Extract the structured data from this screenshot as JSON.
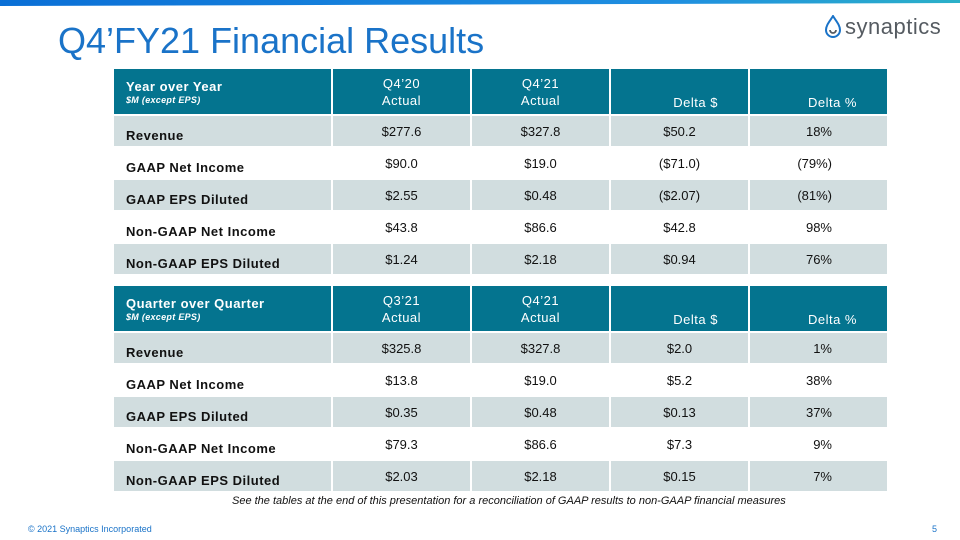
{
  "slide": {
    "title": "Q4’FY21 Financial Results",
    "logo_text": "synaptics",
    "footnote": "See the tables at the end of this presentation for a reconciliation of GAAP results to non-GAAP financial measures",
    "copyright": "© 2021 Synaptics Incorporated",
    "page_number": "5"
  },
  "colors": {
    "title_blue": "#1a73c8",
    "header_teal": "#04748f",
    "row_shade": "#d1dddf",
    "top_bar": "#0a6fd6"
  },
  "yoy": {
    "label": "Year over Year",
    "sublabel": "$M (except EPS)",
    "columns": [
      {
        "line1": "Q4’20",
        "line2": "Actual"
      },
      {
        "line1": "Q4’21",
        "line2": "Actual"
      },
      {
        "label": "Delta $"
      },
      {
        "label": "Delta %"
      }
    ],
    "rows": [
      {
        "label": "Revenue",
        "v1": "$277.6",
        "v2": "$327.8",
        "d": "$50.2",
        "p": "18%"
      },
      {
        "label": "GAAP Net Income",
        "v1": "$90.0",
        "v2": "$19.0",
        "d": "($71.0)",
        "p": "(79%)"
      },
      {
        "label": "GAAP EPS Diluted",
        "v1": "$2.55",
        "v2": "$0.48",
        "d": "($2.07)",
        "p": "(81%)"
      },
      {
        "label": "Non-GAAP Net Income",
        "v1": "$43.8",
        "v2": "$86.6",
        "d": "$42.8",
        "p": "98%"
      },
      {
        "label": "Non-GAAP EPS Diluted",
        "v1": "$1.24",
        "v2": "$2.18",
        "d": "$0.94",
        "p": "76%"
      }
    ]
  },
  "qoq": {
    "label": "Quarter over Quarter",
    "sublabel": "$M (except EPS)",
    "columns": [
      {
        "line1": "Q3’21",
        "line2": "Actual"
      },
      {
        "line1": "Q4’21",
        "line2": "Actual"
      },
      {
        "label": "Delta $"
      },
      {
        "label": "Delta %"
      }
    ],
    "rows": [
      {
        "label": "Revenue",
        "v1": "$325.8",
        "v2": "$327.8",
        "d": "$2.0",
        "p": "1%"
      },
      {
        "label": "GAAP Net Income",
        "v1": "$13.8",
        "v2": "$19.0",
        "d": "$5.2",
        "p": "38%"
      },
      {
        "label": "GAAP EPS Diluted",
        "v1": "$0.35",
        "v2": "$0.48",
        "d": "$0.13",
        "p": "37%"
      },
      {
        "label": "Non-GAAP Net Income",
        "v1": "$79.3",
        "v2": "$86.6",
        "d": "$7.3",
        "p": "9%"
      },
      {
        "label": "Non-GAAP EPS Diluted",
        "v1": "$2.03",
        "v2": "$2.18",
        "d": "$0.15",
        "p": "7%"
      }
    ]
  }
}
